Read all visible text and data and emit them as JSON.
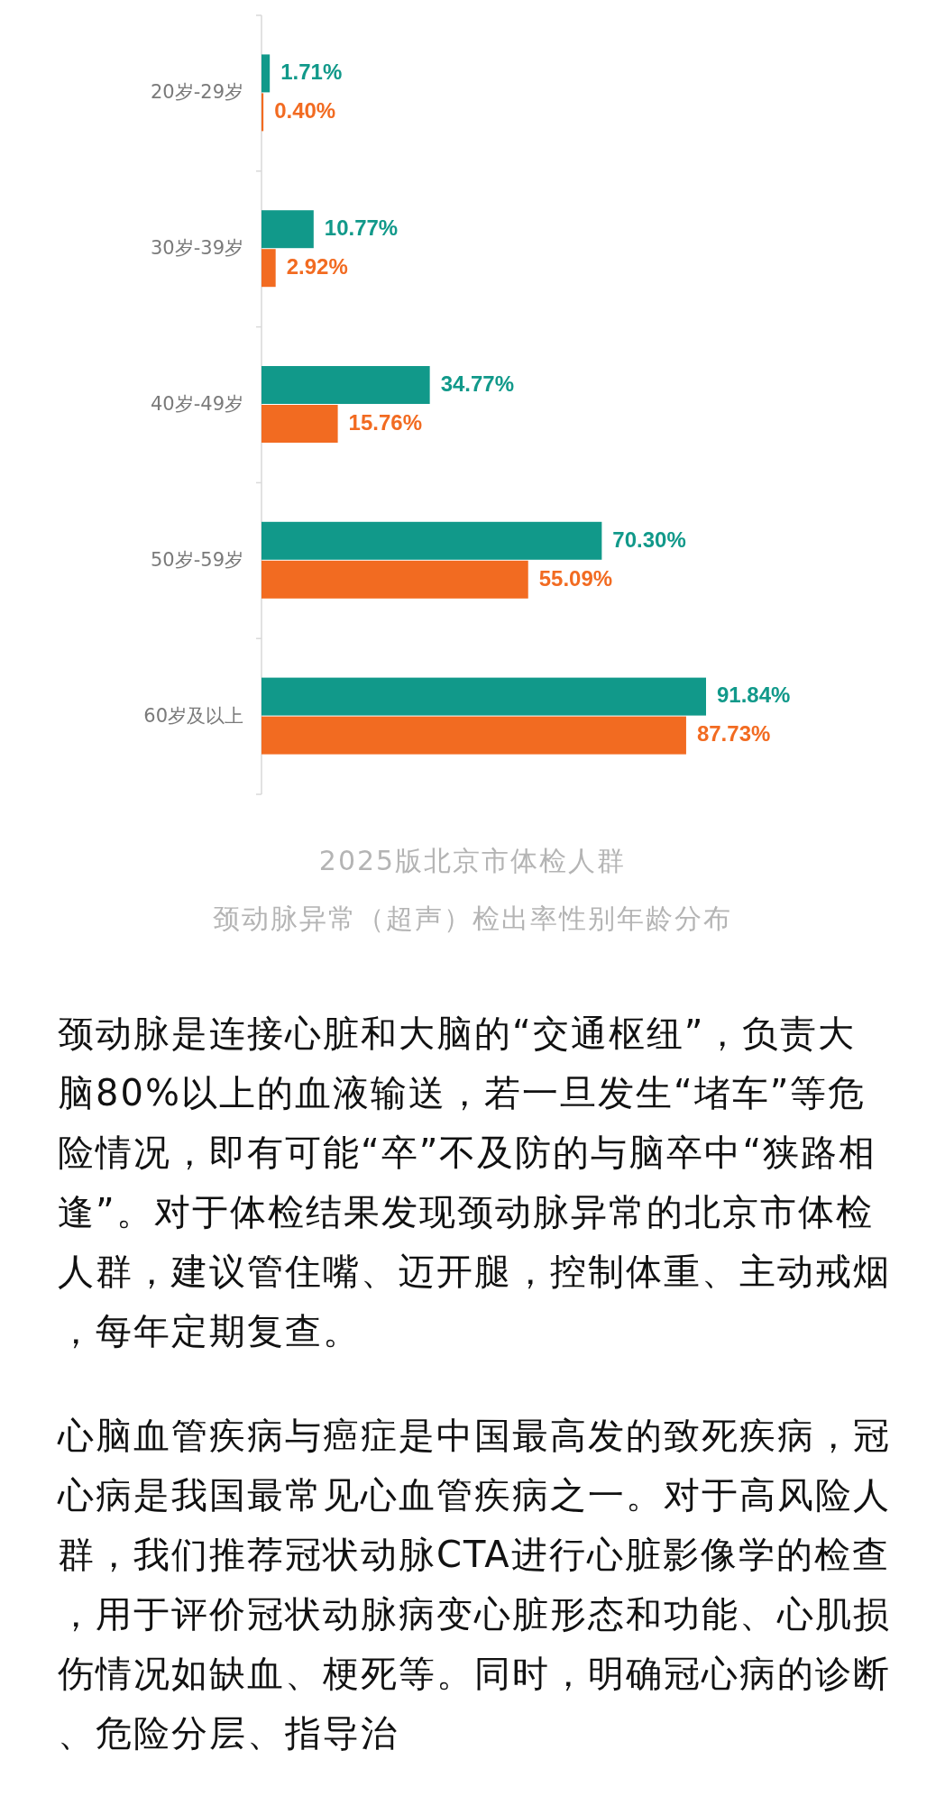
{
  "chart_data": {
    "type": "bar",
    "orientation": "horizontal",
    "title": "2025版北京市体检人群",
    "subtitle": "颈动脉异常（超声）检出率性别年龄分布",
    "categories": [
      "20岁-29岁",
      "30岁-39岁",
      "40岁-49岁",
      "50岁-59岁",
      "60岁及以上"
    ],
    "series": [
      {
        "color": "#11998a",
        "values": [
          1.71,
          10.77,
          34.77,
          70.3,
          91.84
        ],
        "value_labels": [
          "1.71%",
          "10.77%",
          "34.77%",
          "70.30%",
          "91.84%"
        ]
      },
      {
        "color": "#f26b21",
        "values": [
          0.4,
          2.92,
          15.76,
          55.09,
          87.73
        ],
        "value_labels": [
          "0.40%",
          "2.92%",
          "15.76%",
          "55.09%",
          "87.73%"
        ]
      }
    ],
    "annotations": [
      "颈动脉是连接心脏和大脑的“交通枢纽”，负责大脑80%以上的血液输送，若一旦发生“堵车”等危险情况，即有可能“卒”不及防的与脑卒中“狭路相逢”。对于体检结果发现颈动脉异常的北京市体检人群，建议管住嘴、迈开腿，控制体重、主动戒烟，每年定期复查。",
      "心脑血管疾病与癌症是中国最高发的致死疾病，冠心病是我国最常见心血管疾病之一。对于高风险人群，我们推荐冠状动脉CTA进行心脏影像学的检查，用于评价冠状动脉病变心脏形态和功能、心肌损伤情况如缺血、梗死等。同时，明确冠心病的诊断、危险分层、指导治"
    ]
  }
}
